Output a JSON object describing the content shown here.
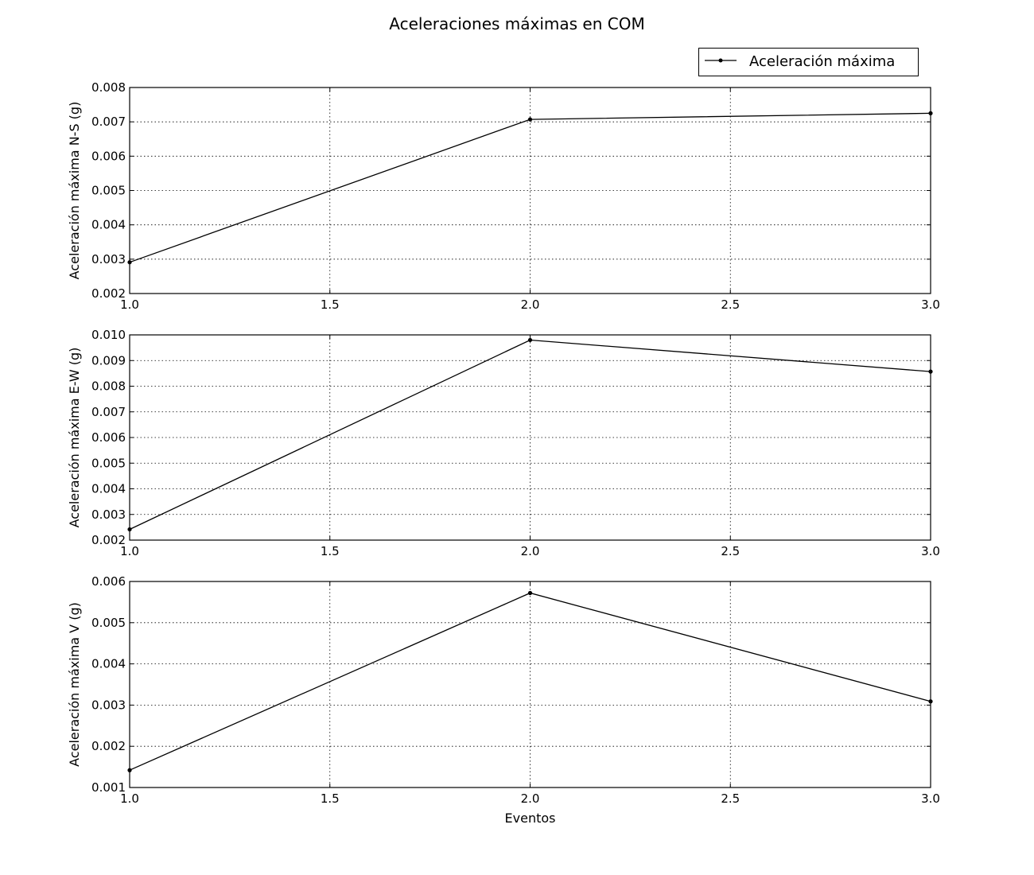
{
  "figure": {
    "title": "Aceleraciones máximas en COM",
    "legend": {
      "label": "Aceleración máxima",
      "placement": "top-right"
    }
  },
  "colors": {
    "line": "#000000",
    "grid": "#000000",
    "background": "#ffffff"
  },
  "chart_data": [
    {
      "type": "line",
      "title": "",
      "xlabel": "",
      "ylabel": "Aceleración máxima N-S (g)",
      "x": [
        1.0,
        2.0,
        3.0
      ],
      "xlim": [
        1.0,
        3.0
      ],
      "ylim": [
        0.002,
        0.008
      ],
      "xticks": [
        "1.0",
        "1.5",
        "2.0",
        "2.5",
        "3.0"
      ],
      "yticks": [
        "0.002",
        "0.003",
        "0.004",
        "0.005",
        "0.006",
        "0.007",
        "0.008"
      ],
      "grid": true,
      "series": [
        {
          "name": "Aceleración máxima",
          "values": [
            0.00291,
            0.00707,
            0.00725
          ]
        }
      ]
    },
    {
      "type": "line",
      "title": "",
      "xlabel": "",
      "ylabel": "Aceleración máxima E-W (g)",
      "x": [
        1.0,
        2.0,
        3.0
      ],
      "xlim": [
        1.0,
        3.0
      ],
      "ylim": [
        0.002,
        0.01
      ],
      "xticks": [
        "1.0",
        "1.5",
        "2.0",
        "2.5",
        "3.0"
      ],
      "yticks": [
        "0.002",
        "0.003",
        "0.004",
        "0.005",
        "0.006",
        "0.007",
        "0.008",
        "0.009",
        "0.010"
      ],
      "grid": true,
      "series": [
        {
          "name": "Aceleración máxima",
          "values": [
            0.00242,
            0.0098,
            0.00857
          ]
        }
      ]
    },
    {
      "type": "line",
      "title": "",
      "xlabel": "Eventos",
      "ylabel": "Aceleración máxima V (g)",
      "x": [
        1.0,
        2.0,
        3.0
      ],
      "xlim": [
        1.0,
        3.0
      ],
      "ylim": [
        0.001,
        0.006
      ],
      "xticks": [
        "1.0",
        "1.5",
        "2.0",
        "2.5",
        "3.0"
      ],
      "yticks": [
        "0.001",
        "0.002",
        "0.003",
        "0.004",
        "0.005",
        "0.006"
      ],
      "grid": true,
      "series": [
        {
          "name": "Aceleración máxima",
          "values": [
            0.00142,
            0.00572,
            0.00309
          ]
        }
      ]
    }
  ]
}
